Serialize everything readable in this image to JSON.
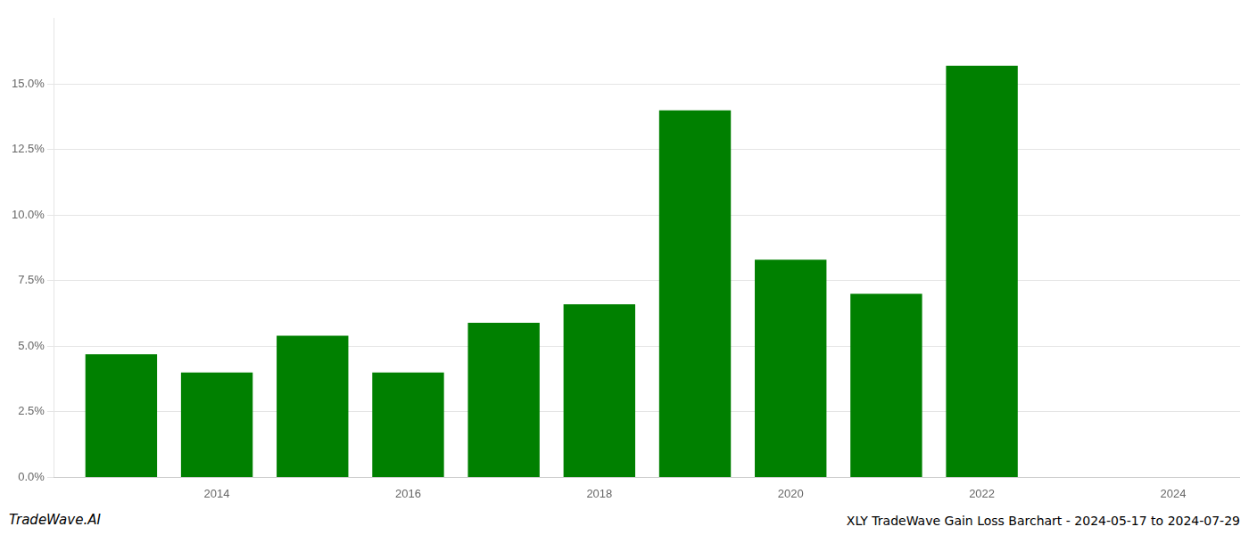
{
  "chart_data": {
    "type": "bar",
    "title": "XLY TradeWave Gain Loss Barchart - 2024-05-17 to 2024-07-29",
    "annotations": [
      "TradeWave.AI"
    ],
    "x": [
      2013,
      2014,
      2015,
      2016,
      2017,
      2018,
      2019,
      2020,
      2021,
      2022,
      2023
    ],
    "values": [
      0.047,
      0.04,
      0.054,
      0.04,
      0.059,
      0.066,
      0.14,
      0.083,
      0.07,
      0.157,
      0.0
    ],
    "color": "#008000",
    "xlim": [
      2012.3,
      2024.7
    ],
    "xticks": [
      2014,
      2016,
      2018,
      2020,
      2022,
      2024
    ],
    "ylim": [
      0,
      0.175
    ],
    "yticks": [
      {
        "value": 0.0,
        "label": "0.0%"
      },
      {
        "value": 0.025,
        "label": "2.5%"
      },
      {
        "value": 0.05,
        "label": "5.0%"
      },
      {
        "value": 0.075,
        "label": "7.5%"
      },
      {
        "value": 0.1,
        "label": "10.0%"
      },
      {
        "value": 0.125,
        "label": "12.5%"
      },
      {
        "value": 0.15,
        "label": "15.0%"
      }
    ],
    "grid": "y"
  }
}
